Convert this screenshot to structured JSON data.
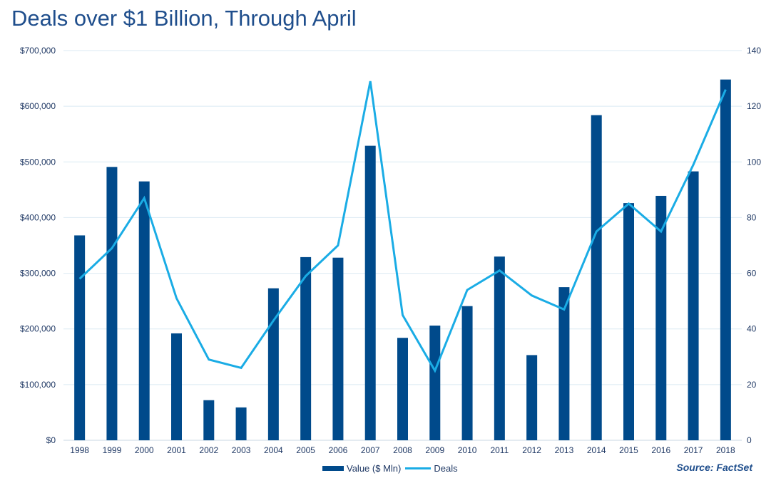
{
  "title": "Deals over $1 Billion, Through April",
  "source": "Source: FactSet",
  "colors": {
    "bar": "#004a8b",
    "line": "#1aace5",
    "grid": "#dbeaf3",
    "text": "#1f3864"
  },
  "chart_data": {
    "type": "bar",
    "categories": [
      "1998",
      "1999",
      "2000",
      "2001",
      "2002",
      "2003",
      "2004",
      "2005",
      "2006",
      "2007",
      "2008",
      "2009",
      "2010",
      "2011",
      "2012",
      "2013",
      "2014",
      "2015",
      "2016",
      "2017",
      "2018"
    ],
    "series": [
      {
        "name": "Value ($ Mln)",
        "type": "bar",
        "axis": "left",
        "values": [
          368000,
          491000,
          465000,
          192000,
          72000,
          59000,
          273000,
          329000,
          328000,
          529000,
          184000,
          206000,
          241000,
          330000,
          153000,
          275000,
          584000,
          426000,
          439000,
          483000,
          648000
        ]
      },
      {
        "name": "Deals",
        "type": "line",
        "axis": "right",
        "values": [
          58,
          69,
          87,
          51,
          29,
          26,
          43,
          59,
          70,
          129,
          45,
          25,
          54,
          61,
          52,
          47,
          75,
          85,
          75,
          99,
          126
        ]
      }
    ],
    "y_left": {
      "ylim": [
        0,
        700000
      ],
      "ticks": [
        "$0",
        "$100,000",
        "$200,000",
        "$300,000",
        "$400,000",
        "$500,000",
        "$600,000",
        "$700,000"
      ]
    },
    "y_right": {
      "ylim": [
        0,
        140
      ],
      "ticks": [
        "0",
        "20",
        "40",
        "60",
        "80",
        "100",
        "120",
        "140"
      ]
    },
    "legend": {
      "placement": "bottom",
      "entries": [
        "Value ($ Mln)",
        "Deals"
      ]
    },
    "grid": true
  }
}
